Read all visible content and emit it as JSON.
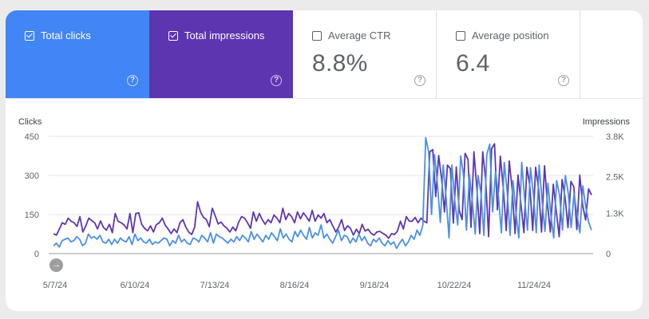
{
  "metrics": [
    {
      "label": "Total clicks",
      "value": "",
      "checked": true,
      "color": "#4285f4"
    },
    {
      "label": "Total impressions",
      "value": "",
      "checked": true,
      "color": "#5e35b1"
    },
    {
      "label": "Average CTR",
      "value": "8.8%",
      "checked": false,
      "color": "#ffffff"
    },
    {
      "label": "Average position",
      "value": "6.4",
      "checked": false,
      "color": "#ffffff"
    }
  ],
  "help_glyph": "?",
  "play_glyph": "→",
  "chart_data": {
    "type": "line",
    "left_axis": {
      "label": "Clicks",
      "ticks": [
        "450",
        "300",
        "150",
        "0"
      ],
      "values": [
        450,
        300,
        150,
        0
      ],
      "ylim": [
        0,
        450
      ]
    },
    "right_axis": {
      "label": "Impressions",
      "ticks": [
        "3.8K",
        "2.5K",
        "1.3K",
        "0"
      ],
      "values": [
        3800,
        2500,
        1300,
        0
      ],
      "ylim": [
        0,
        3800
      ]
    },
    "x_ticks": [
      "5/7/24",
      "6/10/24",
      "7/13/24",
      "8/16/24",
      "9/18/24",
      "10/22/24",
      "11/24/24"
    ],
    "grid": true,
    "series": [
      {
        "name": "Total clicks",
        "axis": "left",
        "color": "#4a90e2",
        "values": [
          30,
          40,
          25,
          50,
          55,
          60,
          45,
          50,
          65,
          55,
          30,
          40,
          75,
          60,
          65,
          55,
          70,
          45,
          40,
          55,
          35,
          55,
          40,
          60,
          50,
          45,
          65,
          35,
          75,
          50,
          60,
          45,
          40,
          55,
          35,
          45,
          40,
          50,
          60,
          55,
          30,
          50,
          40,
          70,
          45,
          55,
          40,
          35,
          60,
          55,
          45,
          70,
          60,
          45,
          80,
          40,
          75,
          65,
          60,
          50,
          40,
          55,
          45,
          65,
          50,
          70,
          60,
          45,
          85,
          55,
          75,
          60,
          45,
          70,
          55,
          80,
          65,
          50,
          95,
          60,
          75,
          55,
          45,
          85,
          65,
          90,
          70,
          55,
          100,
          60,
          80,
          70,
          110,
          60,
          75,
          55,
          40,
          65,
          90,
          50,
          70,
          65,
          40,
          60,
          45,
          75,
          50,
          65,
          40,
          30,
          55,
          45,
          60,
          40,
          30,
          50,
          35,
          45,
          20,
          40,
          55,
          30,
          45,
          70,
          55,
          90,
          70,
          110,
          445,
          390,
          150,
          380,
          270,
          120,
          340,
          215,
          60,
          340,
          200,
          110,
          375,
          300,
          90,
          305,
          205,
          75,
          300,
          230,
          70,
          380,
          420,
          160,
          315,
          220,
          80,
          350,
          240,
          70,
          280,
          160,
          60,
          350,
          210,
          90,
          330,
          230,
          80,
          340,
          200,
          85,
          270,
          150,
          60,
          280,
          225,
          90,
          300,
          230,
          100,
          230,
          150,
          80,
          260,
          180,
          120,
          90
        ]
      },
      {
        "name": "Total impressions",
        "axis": "right",
        "color": "#5e35b1",
        "values": [
          640,
          600,
          800,
          1000,
          950,
          1150,
          1050,
          1000,
          880,
          1200,
          700,
          900,
          1150,
          1070,
          1000,
          800,
          1060,
          850,
          760,
          950,
          680,
          1300,
          1050,
          1000,
          930,
          800,
          1300,
          680,
          1300,
          1320,
          950,
          820,
          740,
          900,
          700,
          940,
          1000,
          1150,
          920,
          800,
          650,
          800,
          680,
          1000,
          1100,
          860,
          700,
          620,
          850,
          1680,
          1350,
          1180,
          1100,
          870,
          1470,
          1230,
          960,
          1020,
          900,
          820,
          700,
          860,
          740,
          1020,
          1200,
          1150,
          1000,
          820,
          1350,
          1050,
          1300,
          1100,
          950,
          1100,
          1000,
          1250,
          1150,
          1000,
          1470,
          1100,
          1300,
          1200,
          1000,
          1350,
          1130,
          1320,
          1200,
          1050,
          1400,
          1050,
          1250,
          1150,
          1300,
          1000,
          1100,
          900,
          700,
          860,
          1100,
          750,
          900,
          820,
          600,
          790,
          650,
          950,
          730,
          790,
          660,
          600,
          700,
          720,
          660,
          600,
          500,
          650,
          620,
          730,
          1050,
          800,
          1200,
          1050,
          1050,
          1170,
          1000,
          1150,
          1050,
          1000,
          3300,
          3370,
          1850,
          3180,
          2420,
          1350,
          2870,
          2750,
          990,
          2810,
          1400,
          1100,
          3250,
          3050,
          850,
          3300,
          2100,
          650,
          3300,
          2400,
          550,
          3400,
          3560,
          1420,
          3160,
          2100,
          750,
          3000,
          2080,
          650,
          2550,
          1600,
          680,
          2800,
          2200,
          750,
          2800,
          2100,
          700,
          2850,
          1620,
          700,
          2250,
          1390,
          550,
          2400,
          1820,
          840,
          2340,
          2160,
          780,
          2540,
          1560,
          1090,
          2100,
          1900
        ]
      }
    ]
  }
}
